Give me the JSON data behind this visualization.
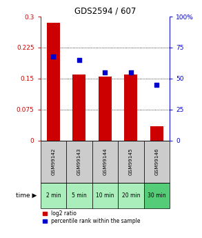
{
  "title": "GDS2594 / 607",
  "categories": [
    "GSM99142",
    "GSM99143",
    "GSM99144",
    "GSM99145",
    "GSM99146"
  ],
  "time_labels": [
    "2 min",
    "5 min",
    "10 min",
    "20 min",
    "30 min"
  ],
  "log2_ratio": [
    0.285,
    0.16,
    0.155,
    0.16,
    0.035
  ],
  "percentile_rank": [
    68,
    65,
    55,
    55,
    45
  ],
  "bar_color": "#cc0000",
  "dot_color": "#0000cc",
  "left_ylim": [
    0,
    0.3
  ],
  "right_ylim": [
    0,
    100
  ],
  "left_yticks": [
    0,
    0.075,
    0.15,
    0.225,
    0.3
  ],
  "right_yticks": [
    0,
    25,
    50,
    75,
    100
  ],
  "left_yticklabels": [
    "0",
    "0.075",
    "0.15",
    "0.225",
    "0.3"
  ],
  "right_yticklabels": [
    "0",
    "25",
    "50",
    "75",
    "100%"
  ],
  "bar_width": 0.5,
  "gsm_bg_color": "#cccccc",
  "time_bg_colors": [
    "#aaeebb",
    "#aaeebb",
    "#aaeebb",
    "#aaeebb",
    "#55cc77"
  ],
  "grid_color": "#000000",
  "legend_red_label": "log2 ratio",
  "legend_blue_label": "percentile rank within the sample",
  "figsize": [
    2.93,
    3.45
  ],
  "dpi": 100
}
